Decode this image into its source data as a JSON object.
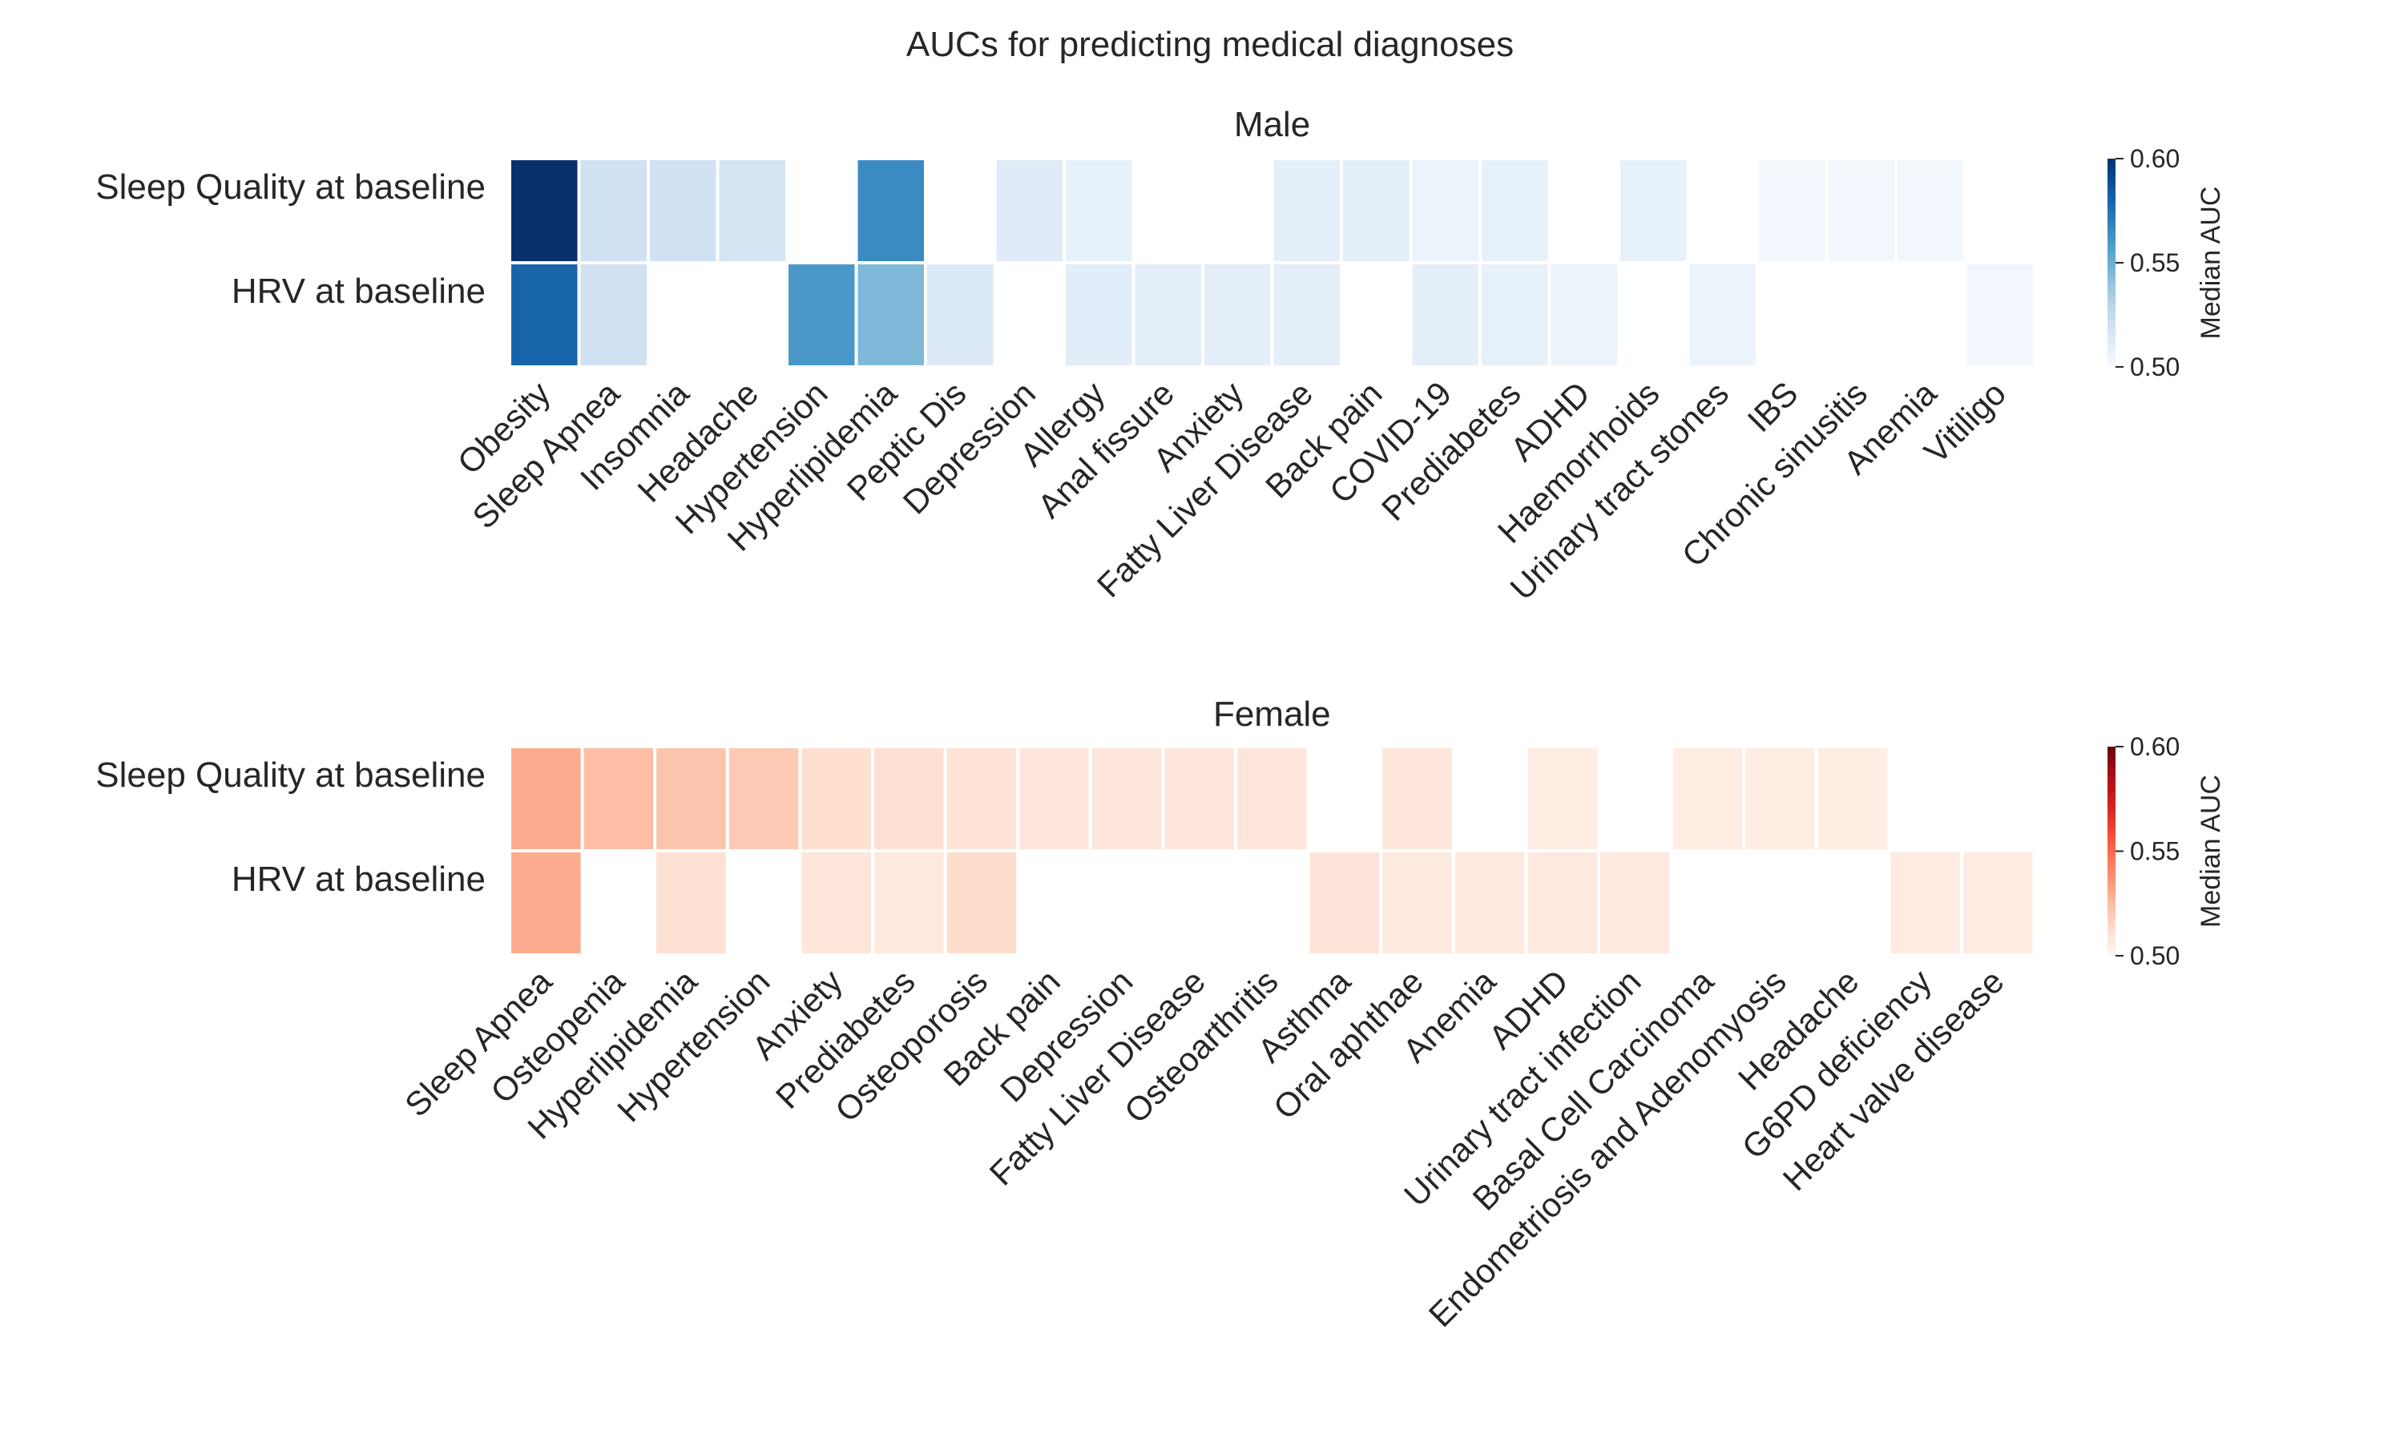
{
  "chart_data": {
    "type": "heatmap",
    "title": "AUCs for predicting medical diagnoses",
    "panels": [
      {
        "title": "Male",
        "colormap": "Blues",
        "rows": [
          "Sleep Quality at baseline",
          "HRV at baseline"
        ],
        "columns": [
          "Obesity",
          "Sleep Apnea",
          "Insomnia",
          "Headache",
          "Hypertension",
          "Hyperlipidemia",
          "Peptic Dis",
          "Depression",
          "Allergy",
          "Anal fissure",
          "Anxiety",
          "Fatty Liver Disease",
          "Back pain",
          "COVID-19",
          "Prediabetes",
          "ADHD",
          "Haemorrhoids",
          "Urinary tract stones",
          "IBS",
          "Chronic sinusitis",
          "Anemia",
          "Vitiligo"
        ],
        "values": [
          [
            0.6,
            0.52,
            0.52,
            0.518,
            null,
            0.565,
            null,
            0.512,
            0.508,
            null,
            null,
            0.509,
            0.51,
            0.506,
            0.508,
            null,
            0.508,
            null,
            0.503,
            0.503,
            0.503,
            null
          ],
          [
            0.58,
            0.52,
            null,
            null,
            0.56,
            0.545,
            0.514,
            null,
            0.511,
            0.51,
            0.51,
            0.51,
            null,
            0.51,
            0.508,
            0.506,
            null,
            0.506,
            null,
            null,
            null,
            0.503
          ]
        ],
        "colorbar": {
          "label": "Median AUC",
          "range": [
            0.5,
            0.6
          ],
          "ticks": [
            "0.50",
            "0.55",
            "0.60"
          ]
        }
      },
      {
        "title": "Female",
        "colormap": "Reds",
        "rows": [
          "Sleep Quality at baseline",
          "HRV at baseline"
        ],
        "columns": [
          "Sleep Apnea",
          "Osteopenia",
          "Hyperlipidemia",
          "Hypertension",
          "Anxiety",
          "Prediabetes",
          "Osteoporosis",
          "Back pain",
          "Depression",
          "Fatty Liver Disease",
          "Osteoarthritis",
          "Asthma",
          "Oral aphthae",
          "Anemia",
          "ADHD",
          "Urinary tract infection",
          "Basal Cell Carcinoma",
          "Endometriosis and Adenomyosis",
          "Headache",
          "G6PD deficiency",
          "Heart valve disease"
        ],
        "values": [
          [
            0.53,
            0.524,
            0.522,
            0.52,
            0.513,
            0.512,
            0.511,
            0.509,
            0.509,
            0.509,
            0.509,
            null,
            0.509,
            null,
            0.505,
            null,
            0.505,
            0.505,
            0.505,
            null,
            null
          ],
          [
            0.53,
            null,
            0.512,
            null,
            0.509,
            0.507,
            0.514,
            null,
            null,
            null,
            null,
            0.51,
            0.507,
            0.507,
            0.507,
            0.507,
            null,
            null,
            null,
            0.506,
            0.506
          ]
        ],
        "colorbar": {
          "label": "Median AUC",
          "range": [
            0.5,
            0.6
          ],
          "ticks": [
            "0.50",
            "0.55",
            "0.60"
          ]
        }
      }
    ]
  }
}
